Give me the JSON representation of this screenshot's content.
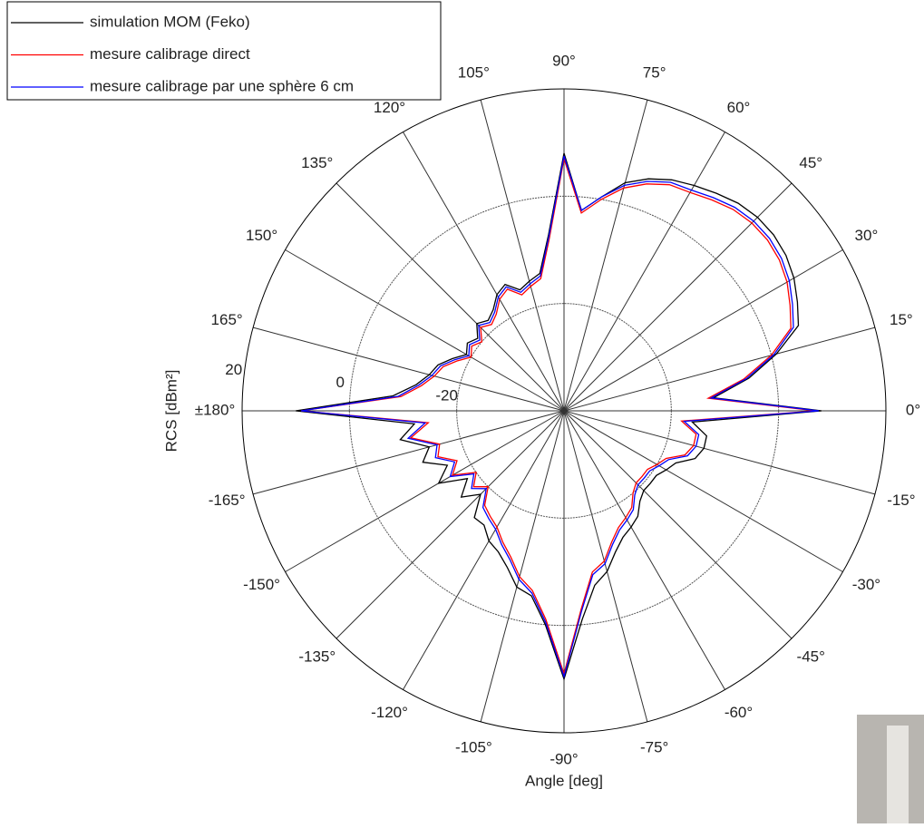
{
  "chart_data": {
    "type": "polar",
    "xlabel": "Angle [deg]",
    "ylabel": "RCS [dBm²]",
    "theta": [
      -180,
      -175,
      -170,
      -165,
      -160,
      -155,
      -150,
      -145,
      -140,
      -135,
      -130,
      -125,
      -120,
      -115,
      -110,
      -105,
      -100,
      -95,
      -90,
      -85,
      -80,
      -75,
      -70,
      -65,
      -60,
      -55,
      -50,
      -45,
      -40,
      -35,
      -30,
      -25,
      -20,
      -15,
      -10,
      -5,
      0,
      5,
      10,
      15,
      20,
      25,
      30,
      35,
      40,
      45,
      50,
      55,
      60,
      65,
      70,
      75,
      80,
      85,
      90,
      95,
      100,
      105,
      110,
      115,
      120,
      125,
      130,
      135,
      140,
      145,
      150,
      155,
      160,
      165,
      170,
      175
    ],
    "rlim": [
      -40,
      20
    ],
    "rticks": [
      -20,
      0,
      20
    ],
    "thetaticks": [
      {
        "value": 0,
        "label": "0°"
      },
      {
        "value": 15,
        "label": "15°"
      },
      {
        "value": 30,
        "label": "30°"
      },
      {
        "value": 45,
        "label": "45°"
      },
      {
        "value": 60,
        "label": "60°"
      },
      {
        "value": 75,
        "label": "75°"
      },
      {
        "value": 90,
        "label": "90°"
      },
      {
        "value": 105,
        "label": "105°"
      },
      {
        "value": 120,
        "label": "120°"
      },
      {
        "value": 135,
        "label": "135°"
      },
      {
        "value": 150,
        "label": "150°"
      },
      {
        "value": 165,
        "label": "165°"
      },
      {
        "value": 180,
        "label": "±180°"
      },
      {
        "value": -165,
        "label": "-165°"
      },
      {
        "value": -150,
        "label": "-150°"
      },
      {
        "value": -135,
        "label": "-135°"
      },
      {
        "value": -120,
        "label": "-120°"
      },
      {
        "value": -105,
        "label": "-105°"
      },
      {
        "value": -90,
        "label": "-90°"
      },
      {
        "value": -75,
        "label": "-75°"
      },
      {
        "value": -60,
        "label": "-60°"
      },
      {
        "value": -45,
        "label": "-45°"
      },
      {
        "value": -30,
        "label": "-30°"
      },
      {
        "value": -15,
        "label": "-15°"
      }
    ],
    "series": [
      {
        "name": "simulation MOM (Feko)",
        "color": "#000000",
        "values": [
          10,
          -12,
          -9,
          -14,
          -12,
          -16,
          -13,
          -18,
          -15,
          -18,
          -14,
          -14,
          -12,
          -11,
          -9,
          -6,
          -5,
          0,
          10,
          -1,
          -7,
          -9,
          -12,
          -14,
          -15,
          -16,
          -18,
          -19,
          -19,
          -19,
          -18,
          -17,
          -14,
          -13,
          -13,
          -16,
          8,
          -12,
          -5,
          1,
          6.5,
          8,
          9.5,
          10.5,
          11,
          11,
          10.5,
          9.5,
          8.5,
          7.5,
          6,
          4,
          0.5,
          -2.5,
          8,
          -7,
          -14,
          -15,
          -16,
          -14,
          -15,
          -17,
          -18,
          -17,
          -19,
          -18,
          -19,
          -17,
          -15,
          -14,
          -12,
          -8
        ]
      },
      {
        "name": "mesure calibrage direct",
        "color": "#ff0000",
        "values": [
          9,
          -14.6,
          -11,
          -16,
          -15,
          -18,
          -16,
          -20,
          -18,
          -20,
          -17,
          -16,
          -15,
          -13,
          -11,
          -8,
          -6,
          -1,
          9,
          -3,
          -9.5,
          -11,
          -14,
          -16,
          -17,
          -18,
          -20,
          -21,
          -21,
          -21,
          -20,
          -19,
          -16,
          -15,
          -15,
          -18,
          7,
          -13,
          -6,
          0,
          5,
          6.5,
          8,
          9,
          9.5,
          9.5,
          9,
          8,
          7,
          6.5,
          5,
          3,
          0,
          -3,
          7,
          -8,
          -15,
          -16,
          -17,
          -15,
          -16,
          -18,
          -19,
          -18,
          -20,
          -19,
          -20,
          -18,
          -16,
          -15,
          -13,
          -9.5
        ]
      },
      {
        "name": "mesure calibrage par une sphère 6 cm",
        "color": "#0000ff",
        "values": [
          9,
          -14,
          -10.5,
          -15.5,
          -14.5,
          -17.5,
          -15.5,
          -19.5,
          -17.5,
          -19.5,
          -16.5,
          -15.5,
          -14.5,
          -12.5,
          -10.5,
          -7.5,
          -5.5,
          -0.5,
          9.5,
          -2.5,
          -9,
          -10.5,
          -13.5,
          -15.5,
          -16.5,
          -17.5,
          -19.5,
          -20.5,
          -20.5,
          -20.5,
          -19.5,
          -18.5,
          -15.5,
          -14.5,
          -14.5,
          -17.5,
          7.5,
          -12.5,
          -5.5,
          0.5,
          5.5,
          7,
          8.5,
          9.5,
          10,
          10,
          9.5,
          8.5,
          7.5,
          7,
          5.5,
          3.5,
          0.5,
          -2.5,
          7.5,
          -7.5,
          -14.5,
          -15.5,
          -16.5,
          -14.5,
          -15.5,
          -17.5,
          -18.5,
          -17.5,
          -19.5,
          -18.5,
          -19.5,
          -17.5,
          -15.5,
          -14.5,
          -12.5,
          -9
        ]
      }
    ]
  }
}
